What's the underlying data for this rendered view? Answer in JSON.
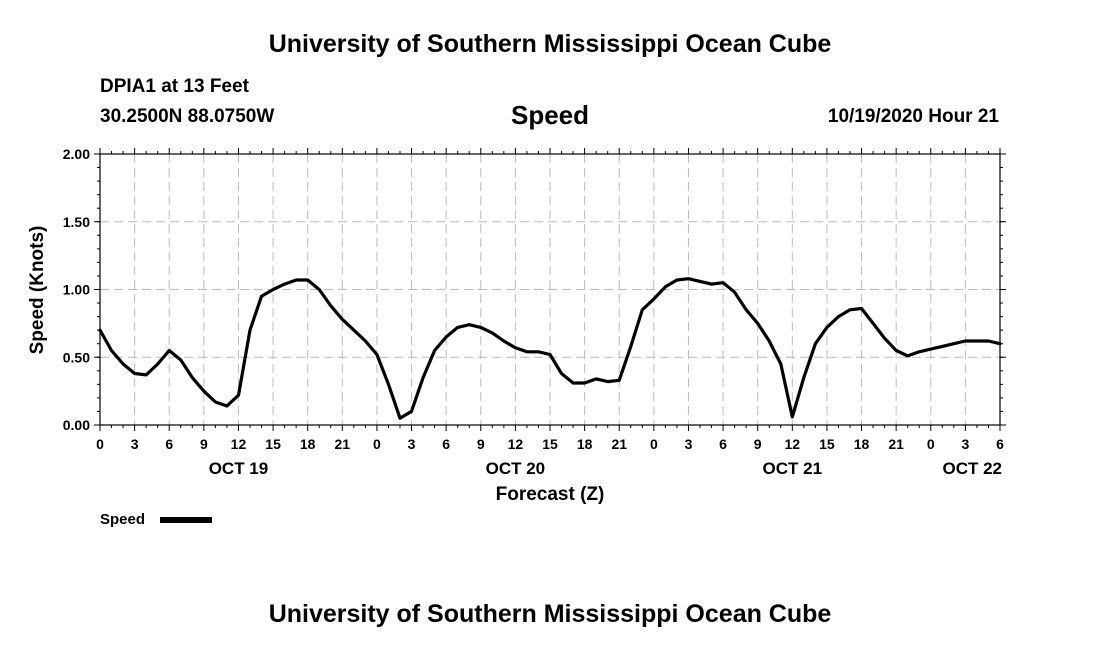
{
  "header": {
    "title_top": "University of Southern Mississippi Ocean Cube",
    "station": "DPIA1 at 13 Feet",
    "coords": "30.2500N 88.0750W",
    "variable": "Speed",
    "issued": "10/19/2020 Hour 21",
    "title_bottom": "University of Southern Mississippi Ocean Cube"
  },
  "legend": {
    "label": "Speed",
    "color": "#000000"
  },
  "chart_data": {
    "type": "line",
    "xlabel": "Forecast (Z)",
    "ylabel": "Speed (Knots)",
    "xlim": [
      0,
      78
    ],
    "ylim": [
      0,
      2.0
    ],
    "grid": true,
    "legend_position": "bottom-left",
    "y_ticks": [
      "0.00",
      "0.50",
      "1.00",
      "1.50",
      "2.00"
    ],
    "y_tick_values": [
      0,
      0.5,
      1.0,
      1.5,
      2.0
    ],
    "x_ticks": [
      "0",
      "3",
      "6",
      "9",
      "12",
      "15",
      "18",
      "21",
      "0",
      "3",
      "6",
      "9",
      "12",
      "15",
      "18",
      "21",
      "0",
      "3",
      "6",
      "9",
      "12",
      "15",
      "18",
      "21",
      "0",
      "3",
      "6"
    ],
    "date_labels": [
      {
        "label": "OCT 19",
        "hour": 12
      },
      {
        "label": "OCT 20",
        "hour": 36
      },
      {
        "label": "OCT 21",
        "hour": 60
      },
      {
        "label": "OCT 22",
        "hour": 78
      }
    ],
    "series": [
      {
        "name": "Speed",
        "x": [
          0,
          1,
          2,
          3,
          4,
          5,
          6,
          7,
          8,
          9,
          10,
          11,
          12,
          13,
          14,
          15,
          16,
          17,
          18,
          19,
          20,
          21,
          22,
          23,
          24,
          25,
          26,
          27,
          28,
          29,
          30,
          31,
          32,
          33,
          34,
          35,
          36,
          37,
          38,
          39,
          40,
          41,
          42,
          43,
          44,
          45,
          46,
          47,
          48,
          49,
          50,
          51,
          52,
          53,
          54,
          55,
          56,
          57,
          58,
          59,
          60,
          61,
          62,
          63,
          64,
          65,
          66,
          67,
          68,
          69,
          70,
          71,
          72,
          73,
          74,
          75,
          76,
          77,
          78
        ],
        "y": [
          0.7,
          0.55,
          0.45,
          0.38,
          0.37,
          0.45,
          0.55,
          0.48,
          0.35,
          0.25,
          0.17,
          0.14,
          0.22,
          0.7,
          0.95,
          1.0,
          1.04,
          1.07,
          1.07,
          1.0,
          0.88,
          0.78,
          0.7,
          0.62,
          0.52,
          0.3,
          0.05,
          0.1,
          0.35,
          0.55,
          0.65,
          0.72,
          0.74,
          0.72,
          0.68,
          0.62,
          0.57,
          0.54,
          0.54,
          0.52,
          0.38,
          0.31,
          0.31,
          0.34,
          0.32,
          0.33,
          0.58,
          0.85,
          0.93,
          1.02,
          1.07,
          1.08,
          1.06,
          1.04,
          1.05,
          0.98,
          0.85,
          0.75,
          0.62,
          0.45,
          0.06,
          0.35,
          0.6,
          0.72,
          0.8,
          0.85,
          0.86,
          0.75,
          0.64,
          0.55,
          0.51,
          0.54,
          0.56,
          0.58,
          0.6,
          0.62,
          0.62,
          0.62,
          0.6
        ]
      }
    ]
  }
}
